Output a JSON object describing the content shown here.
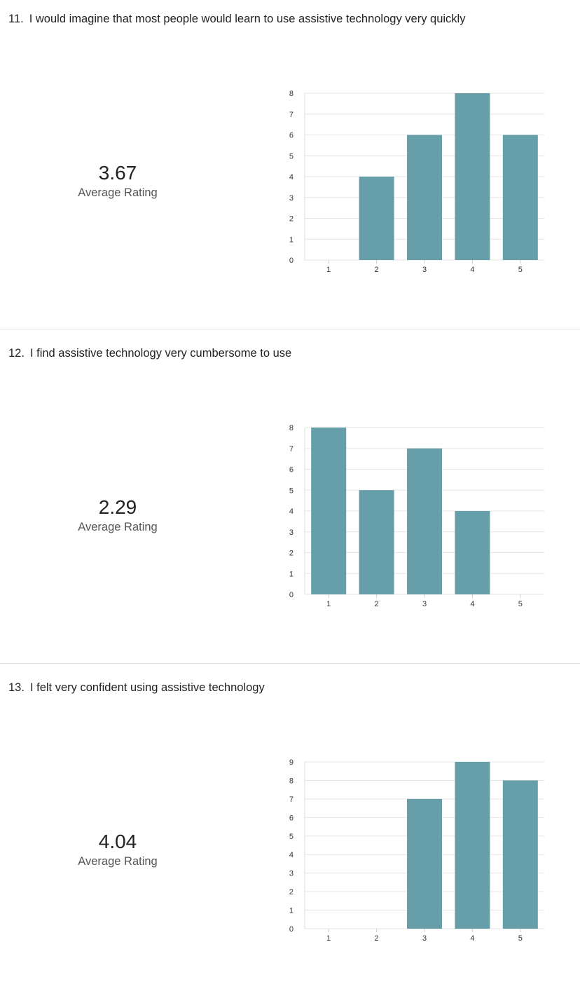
{
  "questions": [
    {
      "number": "11.",
      "title": "I would imagine that most people would learn to use assistive technology very quickly",
      "average": "3.67",
      "average_label": "Average Rating",
      "chart_data": {
        "type": "bar",
        "categories": [
          "1",
          "2",
          "3",
          "4",
          "5"
        ],
        "values": [
          0,
          4,
          6,
          8,
          6
        ],
        "ylim": [
          0,
          8
        ],
        "yticks": [
          0,
          1,
          2,
          3,
          4,
          5,
          6,
          7,
          8
        ],
        "grid": true,
        "bar_color": "#669fa9"
      }
    },
    {
      "number": "12.",
      "title": "I find assistive technology very cumbersome to use",
      "average": "2.29",
      "average_label": "Average Rating",
      "chart_data": {
        "type": "bar",
        "categories": [
          "1",
          "2",
          "3",
          "4",
          "5"
        ],
        "values": [
          8,
          5,
          7,
          4,
          0
        ],
        "ylim": [
          0,
          8
        ],
        "yticks": [
          0,
          1,
          2,
          3,
          4,
          5,
          6,
          7,
          8
        ],
        "grid": true,
        "bar_color": "#669fa9"
      }
    },
    {
      "number": "13.",
      "title": "I felt very confident using assistive technology",
      "average": "4.04",
      "average_label": "Average Rating",
      "chart_data": {
        "type": "bar",
        "categories": [
          "1",
          "2",
          "3",
          "4",
          "5"
        ],
        "values": [
          0,
          0,
          7,
          9,
          8
        ],
        "ylim": [
          0,
          9
        ],
        "yticks": [
          0,
          1,
          2,
          3,
          4,
          5,
          6,
          7,
          8,
          9
        ],
        "grid": true,
        "bar_color": "#669fa9"
      }
    }
  ]
}
